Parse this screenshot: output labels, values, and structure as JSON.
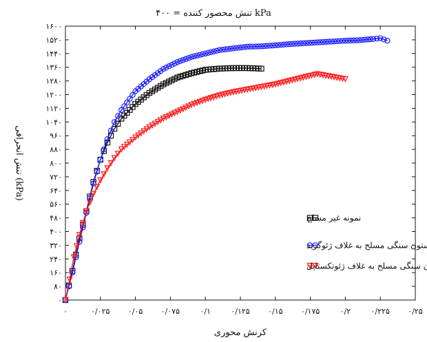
{
  "chart_data": {
    "type": "line",
    "title": "تنش محصور کننده = ۴۰۰ kPa",
    "xlabel": "کرنش محوری",
    "ylabel": "تنش انحرافی (kPa)",
    "xlim": [
      0,
      0.25
    ],
    "ylim": [
      0,
      1600
    ],
    "xticks": [
      0,
      0.025,
      0.05,
      0.075,
      0.1,
      0.125,
      0.15,
      0.175,
      0.2,
      0.225,
      0.25
    ],
    "xtick_labels": [
      "۰",
      "۰/۰۲۵",
      "۰/۰۵",
      "۰/۰۷۵",
      "۰/۱",
      "۰/۱۲۵",
      "۰/۱۵",
      "۰/۱۷۵",
      "۰/۲",
      "۰/۲۲۵",
      "۰/۲۵"
    ],
    "yticks": [
      0,
      80,
      160,
      240,
      320,
      400,
      480,
      560,
      640,
      720,
      800,
      880,
      960,
      1040,
      1120,
      1200,
      1280,
      1360,
      1440,
      1520,
      1600
    ],
    "ytick_labels": [
      "۰",
      "۸۰",
      "۱۶۰",
      "۲۴۰",
      "۳۲۰",
      "۴۰۰",
      "۴۸۰",
      "۵۶۰",
      "۶۴۰",
      "۷۲۰",
      "۸۰۰",
      "۸۸۰",
      "۹۶۰",
      "۱۰۴۰",
      "۱۱۲۰",
      "۱۲۰۰",
      "۱۲۸۰",
      "۱۳۶۰",
      "۱۴۴۰",
      "۱۵۲۰",
      "۱۶۰۰"
    ],
    "grid": false,
    "legend_position": "right",
    "series": [
      {
        "name": "نمونه غیر مسلح",
        "color": "#111111",
        "marker": "square",
        "points": [
          [
            0,
            0
          ],
          [
            0.005,
            170
          ],
          [
            0.01,
            360
          ],
          [
            0.015,
            520
          ],
          [
            0.02,
            690
          ],
          [
            0.025,
            820
          ],
          [
            0.03,
            920
          ],
          [
            0.035,
            1000
          ],
          [
            0.04,
            1060
          ],
          [
            0.05,
            1145
          ],
          [
            0.06,
            1210
          ],
          [
            0.07,
            1260
          ],
          [
            0.08,
            1300
          ],
          [
            0.09,
            1325
          ],
          [
            0.1,
            1345
          ],
          [
            0.11,
            1352
          ],
          [
            0.12,
            1355
          ],
          [
            0.13,
            1355
          ],
          [
            0.14,
            1352
          ]
        ]
      },
      {
        "name": "نمونه مسلح با ستون سنگی مسلح به غلاف ژئوگرید",
        "color": "#1a1aff",
        "marker": "circle",
        "points": [
          [
            0,
            0
          ],
          [
            0.005,
            160
          ],
          [
            0.01,
            340
          ],
          [
            0.015,
            510
          ],
          [
            0.02,
            680
          ],
          [
            0.025,
            820
          ],
          [
            0.03,
            940
          ],
          [
            0.035,
            1040
          ],
          [
            0.04,
            1110
          ],
          [
            0.05,
            1220
          ],
          [
            0.06,
            1290
          ],
          [
            0.07,
            1350
          ],
          [
            0.08,
            1390
          ],
          [
            0.09,
            1420
          ],
          [
            0.1,
            1440
          ],
          [
            0.11,
            1460
          ],
          [
            0.12,
            1470
          ],
          [
            0.13,
            1480
          ],
          [
            0.14,
            1482
          ],
          [
            0.15,
            1488
          ],
          [
            0.16,
            1495
          ],
          [
            0.17,
            1500
          ],
          [
            0.18,
            1505
          ],
          [
            0.19,
            1510
          ],
          [
            0.2,
            1515
          ],
          [
            0.21,
            1518
          ],
          [
            0.22,
            1525
          ],
          [
            0.225,
            1530
          ],
          [
            0.23,
            1515
          ]
        ]
      },
      {
        "name": "نمونه مسلح با ستون سنگی مسلح به غلاف ژئوتکستایل",
        "color": "#ff1a1a",
        "marker": "triangle-down",
        "points": [
          [
            0,
            0
          ],
          [
            0.003,
            120
          ],
          [
            0.006,
            250
          ],
          [
            0.01,
            380
          ],
          [
            0.015,
            520
          ],
          [
            0.02,
            620
          ],
          [
            0.025,
            700
          ],
          [
            0.03,
            770
          ],
          [
            0.035,
            830
          ],
          [
            0.04,
            880
          ],
          [
            0.05,
            950
          ],
          [
            0.06,
            1010
          ],
          [
            0.07,
            1060
          ],
          [
            0.08,
            1100
          ],
          [
            0.09,
            1140
          ],
          [
            0.1,
            1170
          ],
          [
            0.11,
            1195
          ],
          [
            0.12,
            1215
          ],
          [
            0.13,
            1230
          ],
          [
            0.14,
            1245
          ],
          [
            0.15,
            1260
          ],
          [
            0.16,
            1280
          ],
          [
            0.17,
            1300
          ],
          [
            0.18,
            1320
          ],
          [
            0.19,
            1305
          ],
          [
            0.2,
            1290
          ]
        ]
      }
    ]
  }
}
